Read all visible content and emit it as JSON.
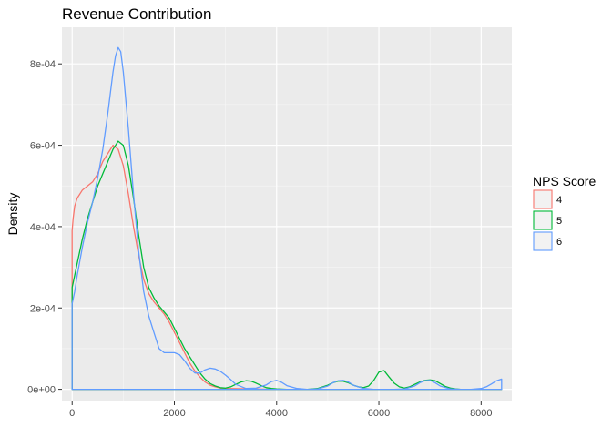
{
  "chart_data": {
    "type": "line",
    "title": "Revenue Contribution",
    "xlabel": "",
    "ylabel": "Density",
    "xlim": [
      -200,
      8600
    ],
    "ylim": [
      -3e-05,
      0.00089
    ],
    "x_ticks": [
      0,
      2000,
      4000,
      6000,
      8000
    ],
    "x_tick_labels": [
      "0",
      "2000",
      "4000",
      "6000",
      "8000"
    ],
    "y_ticks": [
      0,
      0.0002,
      0.0004,
      0.0006,
      0.0008
    ],
    "y_tick_labels": [
      "0e+00",
      "2e-04",
      "4e-04",
      "6e-04",
      "8e-04"
    ],
    "grid": true,
    "legend": {
      "title": "NPS Score",
      "position": "right"
    },
    "series": [
      {
        "name": "4",
        "color": "#f8766d",
        "x": [
          0,
          20,
          50,
          100,
          200,
          300,
          400,
          500,
          600,
          700,
          800,
          900,
          1000,
          1100,
          1200,
          1300,
          1400,
          1500,
          1600,
          1700,
          1800,
          1900,
          2000,
          2100,
          2200,
          2300,
          2400,
          2500,
          2600,
          2700,
          2800,
          2900,
          3000,
          3500,
          4000,
          5000,
          6000,
          7000,
          8000,
          8400
        ],
        "y": [
          0.00039,
          0.00042,
          0.00045,
          0.00047,
          0.00049,
          0.0005,
          0.00051,
          0.00053,
          0.00056,
          0.00058,
          0.0006,
          0.00059,
          0.00055,
          0.00048,
          0.0004,
          0.00033,
          0.00027,
          0.000235,
          0.000215,
          0.0002,
          0.000185,
          0.000165,
          0.00014,
          0.000115,
          9e-05,
          6.5e-05,
          4.5e-05,
          3e-05,
          1.8e-05,
          1e-05,
          6e-06,
          3e-06,
          2e-06,
          1e-06,
          0,
          0,
          0,
          0,
          0,
          0
        ]
      },
      {
        "name": "5",
        "color": "#00ba38",
        "x": [
          0,
          50,
          100,
          200,
          300,
          400,
          500,
          600,
          700,
          800,
          900,
          1000,
          1100,
          1200,
          1300,
          1400,
          1500,
          1600,
          1700,
          1800,
          1900,
          2000,
          2100,
          2200,
          2300,
          2400,
          2500,
          2600,
          2700,
          2800,
          2900,
          3000,
          3100,
          3200,
          3300,
          3400,
          3500,
          3600,
          3700,
          3800,
          3900,
          4000,
          4200,
          4400,
          4600,
          4800,
          5000,
          5100,
          5200,
          5300,
          5400,
          5500,
          5600,
          5700,
          5800,
          5900,
          6000,
          6100,
          6200,
          6300,
          6400,
          6500,
          6600,
          6700,
          6800,
          6900,
          7000,
          7100,
          7200,
          7300,
          7400,
          7500,
          7600,
          7800,
          8000,
          8400
        ],
        "y": [
          0.00025,
          0.00028,
          0.00031,
          0.00037,
          0.00042,
          0.00046,
          0.0005,
          0.00053,
          0.00056,
          0.00059,
          0.00061,
          0.0006,
          0.00055,
          0.00047,
          0.00038,
          0.0003,
          0.00025,
          0.000225,
          0.000205,
          0.00019,
          0.000175,
          0.00015,
          0.000125,
          0.0001,
          8e-05,
          6e-05,
          4e-05,
          2.5e-05,
          1.4e-05,
          8e-06,
          4e-06,
          3e-06,
          6e-06,
          1.2e-05,
          1.8e-05,
          2.1e-05,
          2e-05,
          1.5e-05,
          9e-06,
          4e-06,
          2e-06,
          1e-06,
          0,
          0,
          0,
          2e-06,
          1e-05,
          1.6e-05,
          2e-05,
          2e-05,
          1.6e-05,
          1e-05,
          6e-06,
          4e-06,
          8e-06,
          2.2e-05,
          4.2e-05,
          4.6e-05,
          3e-05,
          1.5e-05,
          6e-06,
          3e-06,
          6e-06,
          1.2e-05,
          1.8e-05,
          2.2e-05,
          2.3e-05,
          2.1e-05,
          1.4e-05,
          7e-06,
          3e-06,
          1e-06,
          0,
          0,
          0,
          0
        ]
      },
      {
        "name": "6",
        "color": "#619cff",
        "x": [
          0,
          50,
          100,
          200,
          300,
          400,
          500,
          600,
          700,
          800,
          850,
          900,
          950,
          1000,
          1100,
          1200,
          1300,
          1400,
          1500,
          1600,
          1700,
          1800,
          1900,
          2000,
          2100,
          2200,
          2300,
          2400,
          2500,
          2600,
          2700,
          2800,
          2900,
          3000,
          3100,
          3200,
          3400,
          3600,
          3800,
          3900,
          4000,
          4100,
          4200,
          4400,
          4600,
          4800,
          5000,
          5100,
          5200,
          5300,
          5400,
          5500,
          5700,
          5900,
          6100,
          6300,
          6500,
          6700,
          6800,
          6900,
          7000,
          7100,
          7200,
          7400,
          7600,
          7800,
          8000,
          8100,
          8200,
          8300,
          8400
        ],
        "y": [
          0.00021,
          0.00024,
          0.00028,
          0.00035,
          0.00041,
          0.00046,
          0.00052,
          0.00059,
          0.00068,
          0.00078,
          0.00082,
          0.00084,
          0.00083,
          0.00078,
          0.00064,
          0.00048,
          0.00034,
          0.00024,
          0.00018,
          0.00014,
          0.0001,
          9e-05,
          9e-05,
          9e-05,
          8.5e-05,
          7e-05,
          5.2e-05,
          4e-05,
          4e-05,
          4.8e-05,
          5.2e-05,
          5e-05,
          4.4e-05,
          3.5e-05,
          2.4e-05,
          1.2e-05,
          2e-06,
          3e-06,
          1.1e-05,
          1.9e-05,
          2.2e-05,
          1.7e-05,
          9e-06,
          2e-06,
          0,
          1e-06,
          8e-06,
          1.6e-05,
          2.1e-05,
          2.2e-05,
          1.8e-05,
          1e-05,
          2e-06,
          0,
          0,
          0,
          1e-06,
          8e-06,
          1.6e-05,
          2.1e-05,
          2.2e-05,
          1.6e-05,
          8e-06,
          1e-06,
          0,
          0,
          2e-06,
          6e-06,
          1.3e-05,
          2.1e-05,
          2.5e-05
        ]
      }
    ]
  }
}
